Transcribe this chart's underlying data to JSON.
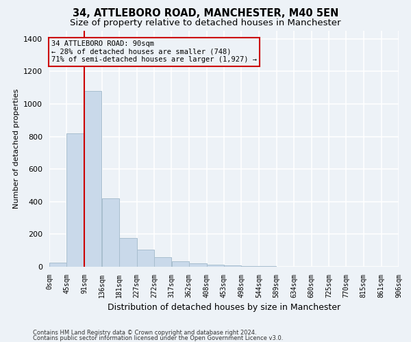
{
  "title1": "34, ATTLEBORO ROAD, MANCHESTER, M40 5EN",
  "title2": "Size of property relative to detached houses in Manchester",
  "xlabel": "Distribution of detached houses by size in Manchester",
  "ylabel": "Number of detached properties",
  "bar_color": "#c9d9ea",
  "bar_edge_color": "#a8bece",
  "bin_edges": [
    0,
    45,
    91,
    136,
    181,
    227,
    272,
    317,
    362,
    408,
    453,
    498,
    544,
    589,
    634,
    680,
    725,
    770,
    815,
    861,
    906
  ],
  "bar_heights": [
    25,
    820,
    1080,
    420,
    178,
    105,
    60,
    35,
    20,
    12,
    8,
    5,
    3,
    2,
    1,
    1,
    1,
    1,
    1,
    1
  ],
  "tick_labels": [
    "0sqm",
    "45sqm",
    "91sqm",
    "136sqm",
    "181sqm",
    "227sqm",
    "272sqm",
    "317sqm",
    "362sqm",
    "408sqm",
    "453sqm",
    "498sqm",
    "544sqm",
    "589sqm",
    "634sqm",
    "680sqm",
    "725sqm",
    "770sqm",
    "815sqm",
    "861sqm",
    "906sqm"
  ],
  "property_line_x": 90,
  "annotation_text": "34 ATTLEBORO ROAD: 90sqm\n← 28% of detached houses are smaller (748)\n71% of semi-detached houses are larger (1,927) →",
  "annotation_box_color": "#cc0000",
  "vline_color": "#cc0000",
  "ylim": [
    0,
    1450
  ],
  "yticks": [
    0,
    200,
    400,
    600,
    800,
    1000,
    1200,
    1400
  ],
  "tick_labels_fontsize": 7,
  "footer1": "Contains HM Land Registry data © Crown copyright and database right 2024.",
  "footer2": "Contains public sector information licensed under the Open Government Licence v3.0.",
  "bg_color": "#edf2f7",
  "grid_color": "#ffffff",
  "title1_fontsize": 10.5,
  "title2_fontsize": 9.5
}
